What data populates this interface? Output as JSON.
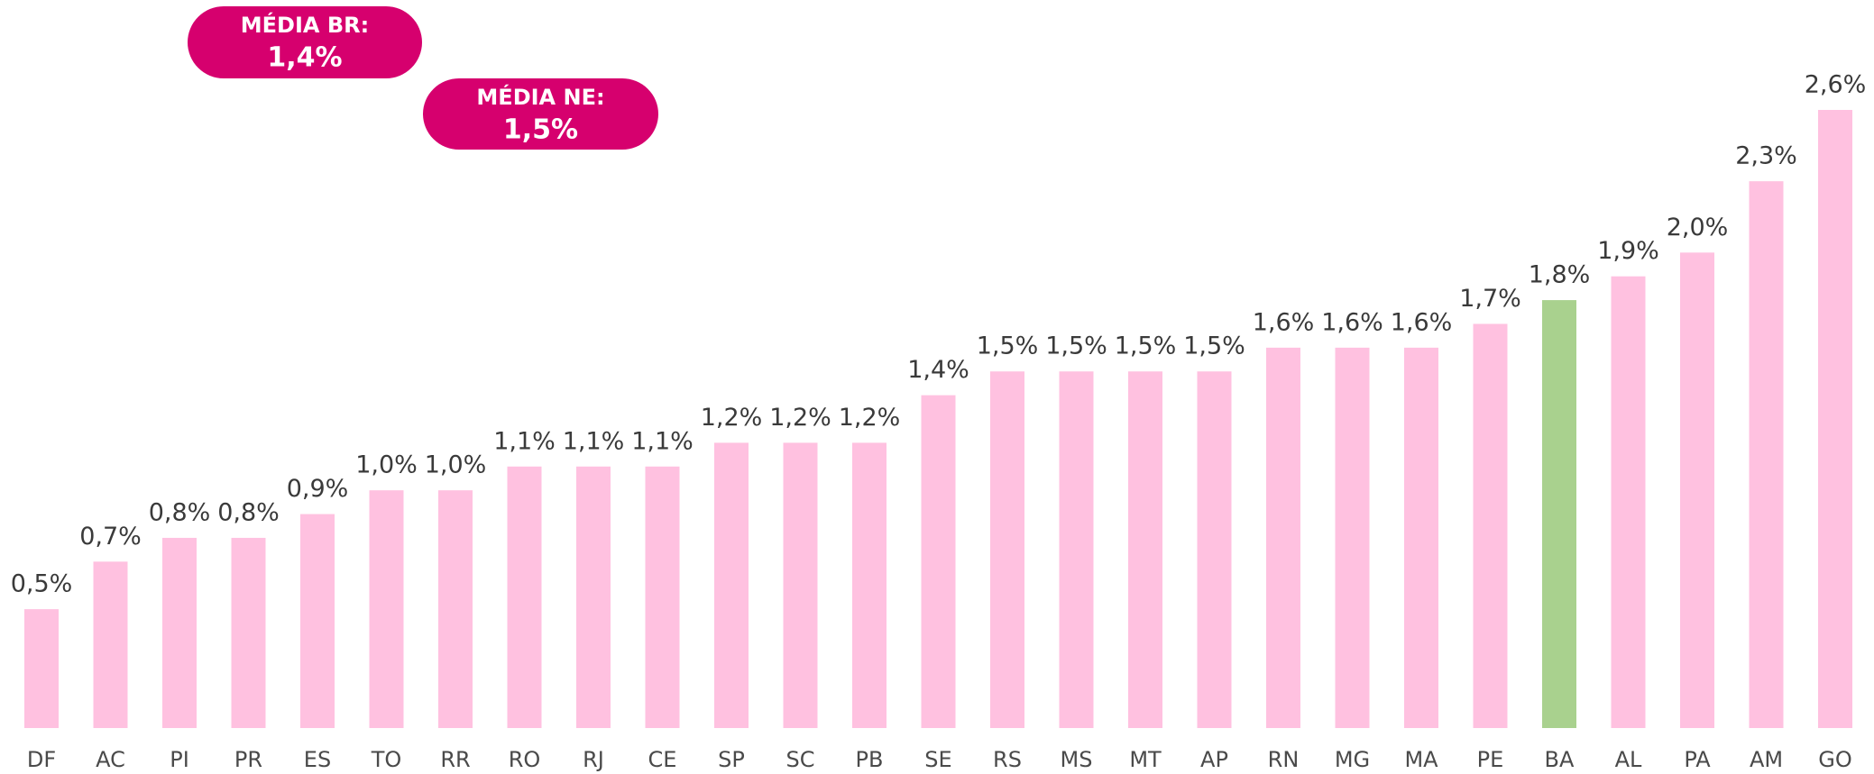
{
  "chart_data": {
    "type": "bar",
    "categories": [
      "DF",
      "AC",
      "PI",
      "PR",
      "ES",
      "TO",
      "RR",
      "RO",
      "RJ",
      "CE",
      "SP",
      "SC",
      "PB",
      "SE",
      "RS",
      "MS",
      "MT",
      "AP",
      "RN",
      "MG",
      "MA",
      "PE",
      "BA",
      "AL",
      "PA",
      "AM",
      "GO"
    ],
    "values": [
      0.5,
      0.7,
      0.8,
      0.8,
      0.9,
      1.0,
      1.0,
      1.1,
      1.1,
      1.1,
      1.2,
      1.2,
      1.2,
      1.4,
      1.5,
      1.5,
      1.5,
      1.5,
      1.6,
      1.6,
      1.6,
      1.7,
      1.8,
      1.9,
      2.0,
      2.3,
      2.6
    ],
    "value_labels": [
      "0,5%",
      "0,7%",
      "0,8%",
      "0,8%",
      "0,9%",
      "1,0%",
      "1,0%",
      "1,1%",
      "1,1%",
      "1,1%",
      "1,2%",
      "1,2%",
      "1,2%",
      "1,4%",
      "1,5%",
      "1,5%",
      "1,5%",
      "1,5%",
      "1,6%",
      "1,6%",
      "1,6%",
      "1,7%",
      "1,8%",
      "1,9%",
      "2,0%",
      "2,3%",
      "2,6%"
    ],
    "colors": [
      "#ffc1e0",
      "#ffc1e0",
      "#ffc1e0",
      "#ffc1e0",
      "#ffc1e0",
      "#ffc1e0",
      "#ffc1e0",
      "#ffc1e0",
      "#ffc1e0",
      "#ffc1e0",
      "#ffc1e0",
      "#ffc1e0",
      "#ffc1e0",
      "#ffc1e0",
      "#ffc1e0",
      "#ffc1e0",
      "#ffc1e0",
      "#ffc1e0",
      "#ffc1e0",
      "#ffc1e0",
      "#ffc1e0",
      "#ffc1e0",
      "#a9d18e",
      "#ffc1e0",
      "#ffc1e0",
      "#ffc1e0",
      "#ffc1e0"
    ],
    "ylim": [
      0,
      2.6
    ],
    "annotations": [
      {
        "label": "MÉDIA BR:",
        "text": "1,4%",
        "color": "#d6006e"
      },
      {
        "label": "MÉDIA NE:",
        "text": "1,5%",
        "color": "#d6006e"
      }
    ]
  }
}
